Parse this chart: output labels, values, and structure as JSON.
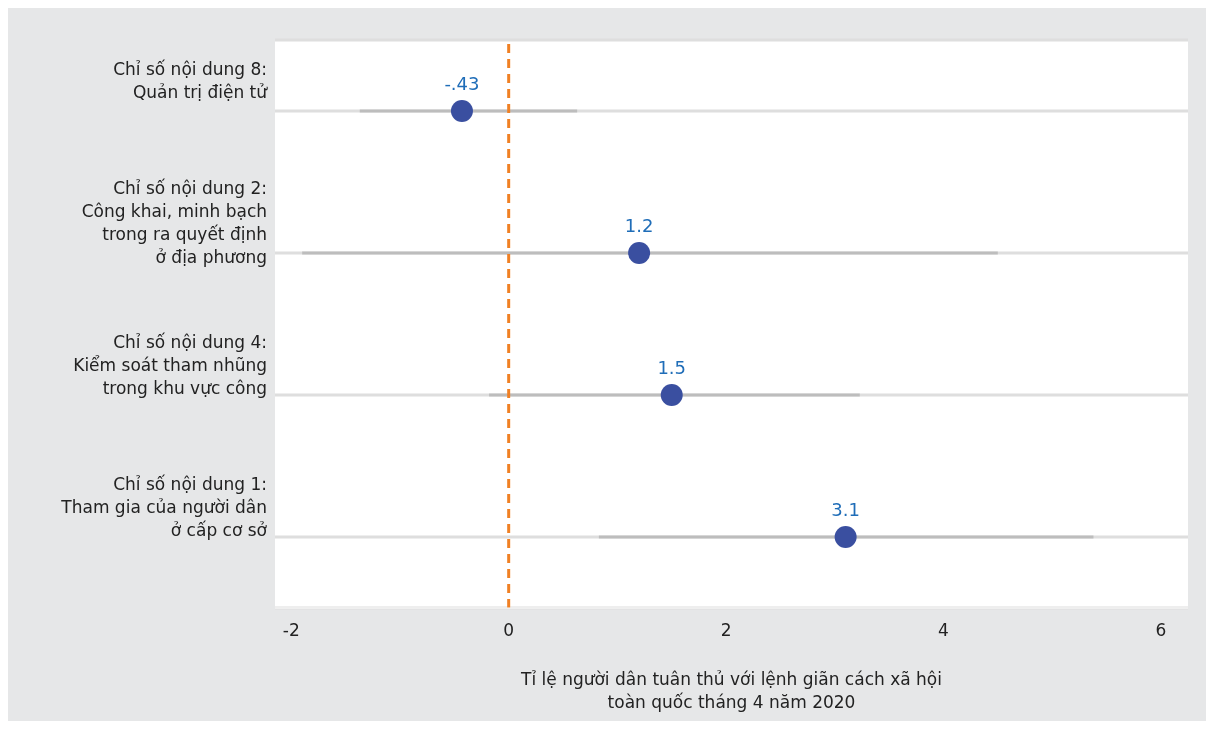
{
  "chart_data": {
    "type": "scatter",
    "orientation": "horizontal",
    "xlabel": "Tỉ lệ người dân tuân thủ với lệnh giãn cách xã hội\ntoàn quốc tháng 4 năm 2020",
    "categories": [
      "Chỉ số nội dung 8:\nQuản trị điện tử",
      "Chỉ số nội dung 2:\nCông khai, minh bạch\ntrong ra quyết định\nở địa phương",
      "Chỉ số nội dung 4:\nKiểm soát tham nhũng\ntrong khu vực công",
      "Chỉ số nội dung 1:\nTham gia của người dân\nở cấp cơ sở"
    ],
    "values": [
      -0.43,
      1.2,
      1.5,
      3.1
    ],
    "value_labels": [
      "-.43",
      "1.2",
      "1.5",
      "3.1"
    ],
    "errors": [
      [
        -1.37,
        0.63
      ],
      [
        -1.9,
        4.5
      ],
      [
        -0.18,
        3.23
      ],
      [
        0.83,
        5.38
      ]
    ],
    "color": "#3a4fa0",
    "marker": "circle",
    "xlim": [
      -2.15,
      6.25
    ],
    "xticks": [
      -2,
      0,
      2,
      4,
      6
    ],
    "grid": "y",
    "ref_lines": [
      {
        "axis": "x",
        "value": 0,
        "color": "#f08024",
        "line_style": "dashed"
      }
    ]
  }
}
